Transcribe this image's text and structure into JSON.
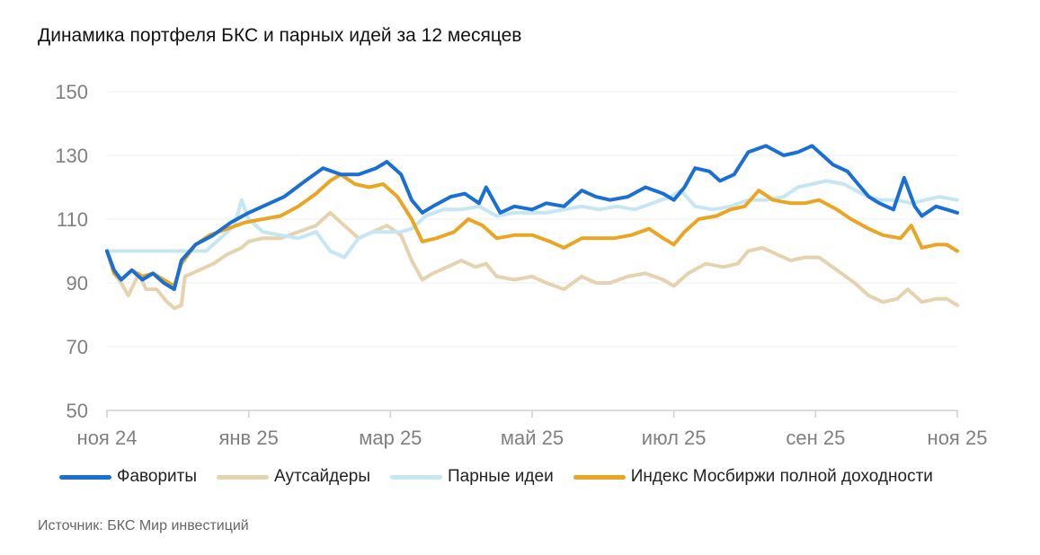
{
  "title": "Динамика портфеля БКС и парных идей за 12 месяцев",
  "source": "Источник: БКС Мир инвестиций",
  "chart_data": {
    "type": "line",
    "title": "Динамика портфеля БКС и парных идей за 12 месяцев",
    "xlabel": "",
    "ylabel": "",
    "ylim": [
      50,
      150
    ],
    "yticks": [
      50,
      70,
      90,
      110,
      130,
      150
    ],
    "xticks": [
      {
        "label": "ноя 24",
        "x": 0
      },
      {
        "label": "янв 25",
        "x": 2
      },
      {
        "label": "мар 25",
        "x": 4
      },
      {
        "label": "май 25",
        "x": 6
      },
      {
        "label": "июл 25",
        "x": 8
      },
      {
        "label": "сен 25",
        "x": 10
      },
      {
        "label": "ноя 25",
        "x": 12
      }
    ],
    "xlim": [
      0,
      12
    ],
    "grid": true,
    "legend": "bottom",
    "series": [
      {
        "name": "Фавориты",
        "color": "#1a6fd4",
        "points": [
          [
            0,
            100
          ],
          [
            0.1,
            94
          ],
          [
            0.2,
            91
          ],
          [
            0.35,
            94
          ],
          [
            0.5,
            91
          ],
          [
            0.65,
            93
          ],
          [
            0.8,
            90
          ],
          [
            0.95,
            88
          ],
          [
            1.05,
            97
          ],
          [
            1.25,
            102
          ],
          [
            1.5,
            105
          ],
          [
            1.75,
            109
          ],
          [
            2.0,
            112
          ],
          [
            2.2,
            114
          ],
          [
            2.5,
            117
          ],
          [
            2.8,
            122
          ],
          [
            3.05,
            126
          ],
          [
            3.3,
            124
          ],
          [
            3.55,
            124
          ],
          [
            3.8,
            126
          ],
          [
            3.95,
            128
          ],
          [
            4.15,
            124
          ],
          [
            4.3,
            116
          ],
          [
            4.45,
            112
          ],
          [
            4.6,
            114
          ],
          [
            4.85,
            117
          ],
          [
            5.05,
            118
          ],
          [
            5.25,
            115
          ],
          [
            5.35,
            120
          ],
          [
            5.55,
            112
          ],
          [
            5.75,
            114
          ],
          [
            6.0,
            113
          ],
          [
            6.2,
            115
          ],
          [
            6.45,
            114
          ],
          [
            6.7,
            119
          ],
          [
            6.9,
            117
          ],
          [
            7.1,
            116
          ],
          [
            7.35,
            117
          ],
          [
            7.6,
            120
          ],
          [
            7.85,
            118
          ],
          [
            8.0,
            116
          ],
          [
            8.15,
            120
          ],
          [
            8.3,
            126
          ],
          [
            8.5,
            125
          ],
          [
            8.65,
            122
          ],
          [
            8.85,
            124
          ],
          [
            9.05,
            131
          ],
          [
            9.3,
            133
          ],
          [
            9.55,
            130
          ],
          [
            9.75,
            131
          ],
          [
            9.95,
            133
          ],
          [
            10.1,
            130
          ],
          [
            10.25,
            127
          ],
          [
            10.45,
            125
          ],
          [
            10.6,
            121
          ],
          [
            10.75,
            117
          ],
          [
            10.9,
            115
          ],
          [
            11.1,
            113
          ],
          [
            11.25,
            123
          ],
          [
            11.4,
            114
          ],
          [
            11.5,
            111
          ],
          [
            11.7,
            114
          ],
          [
            11.85,
            113
          ],
          [
            12.0,
            112
          ]
        ]
      },
      {
        "name": "Аутсайдеры",
        "color": "#e4d3ae",
        "points": [
          [
            0,
            100
          ],
          [
            0.1,
            93
          ],
          [
            0.2,
            90
          ],
          [
            0.3,
            86
          ],
          [
            0.45,
            93
          ],
          [
            0.55,
            88
          ],
          [
            0.7,
            88
          ],
          [
            0.85,
            84
          ],
          [
            0.95,
            82
          ],
          [
            1.05,
            83
          ],
          [
            1.1,
            92
          ],
          [
            1.3,
            94
          ],
          [
            1.5,
            96
          ],
          [
            1.7,
            99
          ],
          [
            1.9,
            101
          ],
          [
            2.0,
            103
          ],
          [
            2.2,
            104
          ],
          [
            2.45,
            104
          ],
          [
            2.7,
            106
          ],
          [
            2.95,
            108
          ],
          [
            3.15,
            112
          ],
          [
            3.35,
            108
          ],
          [
            3.55,
            104
          ],
          [
            3.75,
            106
          ],
          [
            3.95,
            108
          ],
          [
            4.15,
            105
          ],
          [
            4.3,
            97
          ],
          [
            4.45,
            91
          ],
          [
            4.6,
            93
          ],
          [
            4.8,
            95
          ],
          [
            5.0,
            97
          ],
          [
            5.2,
            95
          ],
          [
            5.35,
            96
          ],
          [
            5.5,
            92
          ],
          [
            5.75,
            91
          ],
          [
            6.0,
            92
          ],
          [
            6.2,
            90
          ],
          [
            6.45,
            88
          ],
          [
            6.7,
            92
          ],
          [
            6.9,
            90
          ],
          [
            7.1,
            90
          ],
          [
            7.35,
            92
          ],
          [
            7.6,
            93
          ],
          [
            7.85,
            91
          ],
          [
            8.0,
            89
          ],
          [
            8.2,
            93
          ],
          [
            8.45,
            96
          ],
          [
            8.7,
            95
          ],
          [
            8.9,
            96
          ],
          [
            9.05,
            100
          ],
          [
            9.25,
            101
          ],
          [
            9.45,
            99
          ],
          [
            9.65,
            97
          ],
          [
            9.85,
            98
          ],
          [
            10.05,
            98
          ],
          [
            10.3,
            94
          ],
          [
            10.55,
            90
          ],
          [
            10.75,
            86
          ],
          [
            10.95,
            84
          ],
          [
            11.15,
            85
          ],
          [
            11.3,
            88
          ],
          [
            11.5,
            84
          ],
          [
            11.7,
            85
          ],
          [
            11.85,
            85
          ],
          [
            12.0,
            83
          ]
        ]
      },
      {
        "name": "Парные идеи",
        "color": "#c5e6f3",
        "points": [
          [
            0,
            100
          ],
          [
            0.5,
            100
          ],
          [
            1.0,
            100
          ],
          [
            1.4,
            100
          ],
          [
            1.6,
            104
          ],
          [
            1.8,
            108
          ],
          [
            1.9,
            116
          ],
          [
            2.0,
            110
          ],
          [
            2.2,
            106
          ],
          [
            2.45,
            105
          ],
          [
            2.7,
            104
          ],
          [
            2.95,
            106
          ],
          [
            3.15,
            100
          ],
          [
            3.35,
            98
          ],
          [
            3.55,
            104
          ],
          [
            3.75,
            106
          ],
          [
            3.95,
            106
          ],
          [
            4.15,
            106
          ],
          [
            4.3,
            107
          ],
          [
            4.5,
            111
          ],
          [
            4.75,
            113
          ],
          [
            5.0,
            113
          ],
          [
            5.25,
            114
          ],
          [
            5.5,
            111
          ],
          [
            5.75,
            112
          ],
          [
            6.0,
            112
          ],
          [
            6.2,
            112
          ],
          [
            6.45,
            113
          ],
          [
            6.7,
            114
          ],
          [
            6.95,
            113
          ],
          [
            7.2,
            114
          ],
          [
            7.45,
            113
          ],
          [
            7.7,
            115
          ],
          [
            7.95,
            117
          ],
          [
            8.1,
            119
          ],
          [
            8.3,
            114
          ],
          [
            8.55,
            113
          ],
          [
            8.8,
            114
          ],
          [
            9.05,
            116
          ],
          [
            9.3,
            116
          ],
          [
            9.55,
            117
          ],
          [
            9.75,
            120
          ],
          [
            9.95,
            121
          ],
          [
            10.15,
            122
          ],
          [
            10.4,
            121
          ],
          [
            10.65,
            118
          ],
          [
            10.9,
            116
          ],
          [
            11.15,
            116
          ],
          [
            11.35,
            115
          ],
          [
            11.55,
            116
          ],
          [
            11.75,
            117
          ],
          [
            12.0,
            116
          ]
        ]
      },
      {
        "name": "Индекс Мосбиржи полной доходности",
        "color": "#e9a623",
        "points": [
          [
            0,
            100
          ],
          [
            0.1,
            93
          ],
          [
            0.2,
            91
          ],
          [
            0.35,
            94
          ],
          [
            0.5,
            92
          ],
          [
            0.65,
            93
          ],
          [
            0.8,
            91
          ],
          [
            0.95,
            89
          ],
          [
            1.05,
            96
          ],
          [
            1.25,
            102
          ],
          [
            1.45,
            105
          ],
          [
            1.7,
            107
          ],
          [
            1.95,
            109
          ],
          [
            2.2,
            110
          ],
          [
            2.45,
            111
          ],
          [
            2.7,
            114
          ],
          [
            2.95,
            118
          ],
          [
            3.15,
            122
          ],
          [
            3.3,
            124
          ],
          [
            3.5,
            121
          ],
          [
            3.7,
            120
          ],
          [
            3.9,
            121
          ],
          [
            4.1,
            117
          ],
          [
            4.3,
            110
          ],
          [
            4.45,
            103
          ],
          [
            4.65,
            104
          ],
          [
            4.9,
            106
          ],
          [
            5.1,
            110
          ],
          [
            5.3,
            108
          ],
          [
            5.5,
            104
          ],
          [
            5.75,
            105
          ],
          [
            6.0,
            105
          ],
          [
            6.25,
            103
          ],
          [
            6.45,
            101
          ],
          [
            6.7,
            104
          ],
          [
            6.9,
            104
          ],
          [
            7.15,
            104
          ],
          [
            7.4,
            105
          ],
          [
            7.65,
            107
          ],
          [
            7.85,
            104
          ],
          [
            8.0,
            102
          ],
          [
            8.15,
            106
          ],
          [
            8.35,
            110
          ],
          [
            8.6,
            111
          ],
          [
            8.8,
            113
          ],
          [
            9.0,
            114
          ],
          [
            9.2,
            119
          ],
          [
            9.4,
            116
          ],
          [
            9.65,
            115
          ],
          [
            9.85,
            115
          ],
          [
            10.05,
            116
          ],
          [
            10.3,
            113
          ],
          [
            10.5,
            110
          ],
          [
            10.75,
            107
          ],
          [
            10.95,
            105
          ],
          [
            11.2,
            104
          ],
          [
            11.35,
            108
          ],
          [
            11.5,
            101
          ],
          [
            11.7,
            102
          ],
          [
            11.85,
            102
          ],
          [
            12.0,
            100
          ]
        ]
      }
    ]
  }
}
